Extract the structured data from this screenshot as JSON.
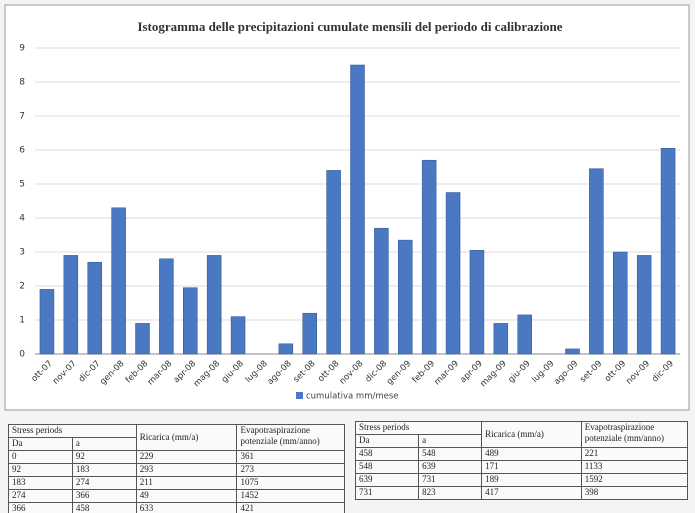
{
  "chart_data": {
    "type": "bar",
    "title": "Istogramma delle precipitazioni cumulate mensili del periodo di calibrazione",
    "categories": [
      "ott-07",
      "nov-07",
      "dic-07",
      "gen-08",
      "feb-08",
      "mar-08",
      "apr-08",
      "mag-08",
      "giu-08",
      "lug-08",
      "ago-08",
      "set-08",
      "ott-08",
      "nov-08",
      "dic-08",
      "gen-09",
      "feb-09",
      "mar-09",
      "apr-09",
      "mag-09",
      "giu-09",
      "lug-09",
      "ago-09",
      "set-09",
      "ott-09",
      "nov-09",
      "dic-09"
    ],
    "series": [
      {
        "name": "cumulativa mm/mese",
        "color": "#4a78c2",
        "values": [
          1.9,
          2.9,
          2.7,
          4.3,
          0.9,
          2.8,
          1.95,
          2.9,
          1.1,
          0,
          0.3,
          1.2,
          5.4,
          8.5,
          3.7,
          3.35,
          5.7,
          4.75,
          3.05,
          0.9,
          1.15,
          0,
          0.15,
          5.45,
          3.0,
          2.9,
          6.05
        ]
      }
    ],
    "ylim": [
      0,
      9
    ],
    "yticks": [
      0,
      1,
      2,
      3,
      4,
      5,
      6,
      7,
      8,
      9
    ],
    "grid": true,
    "legend": "bottom"
  },
  "tables": [
    {
      "header": {
        "group": "Stress periods",
        "from": "Da",
        "to": "a",
        "recharge": "Ricarica (mm/a)",
        "evap": "Evapotraspirazione potenziale (mm/anno)"
      },
      "rows": [
        [
          "0",
          "92",
          "229",
          "361"
        ],
        [
          "92",
          "183",
          "293",
          "273"
        ],
        [
          "183",
          "274",
          "211",
          "1075"
        ],
        [
          "274",
          "366",
          "49",
          "1452"
        ],
        [
          "366",
          "458",
          "633",
          "421"
        ]
      ]
    },
    {
      "header": {
        "group": "Stress periods",
        "from": "Da",
        "to": "a",
        "recharge": "Ricarica (mm/a)",
        "evap": "Evapotraspirazione potenziale (mm/anno)"
      },
      "rows": [
        [
          "458",
          "548",
          "489",
          "221"
        ],
        [
          "548",
          "639",
          "171",
          "1133"
        ],
        [
          "639",
          "731",
          "189",
          "1592"
        ],
        [
          "731",
          "823",
          "417",
          "398"
        ]
      ]
    }
  ]
}
